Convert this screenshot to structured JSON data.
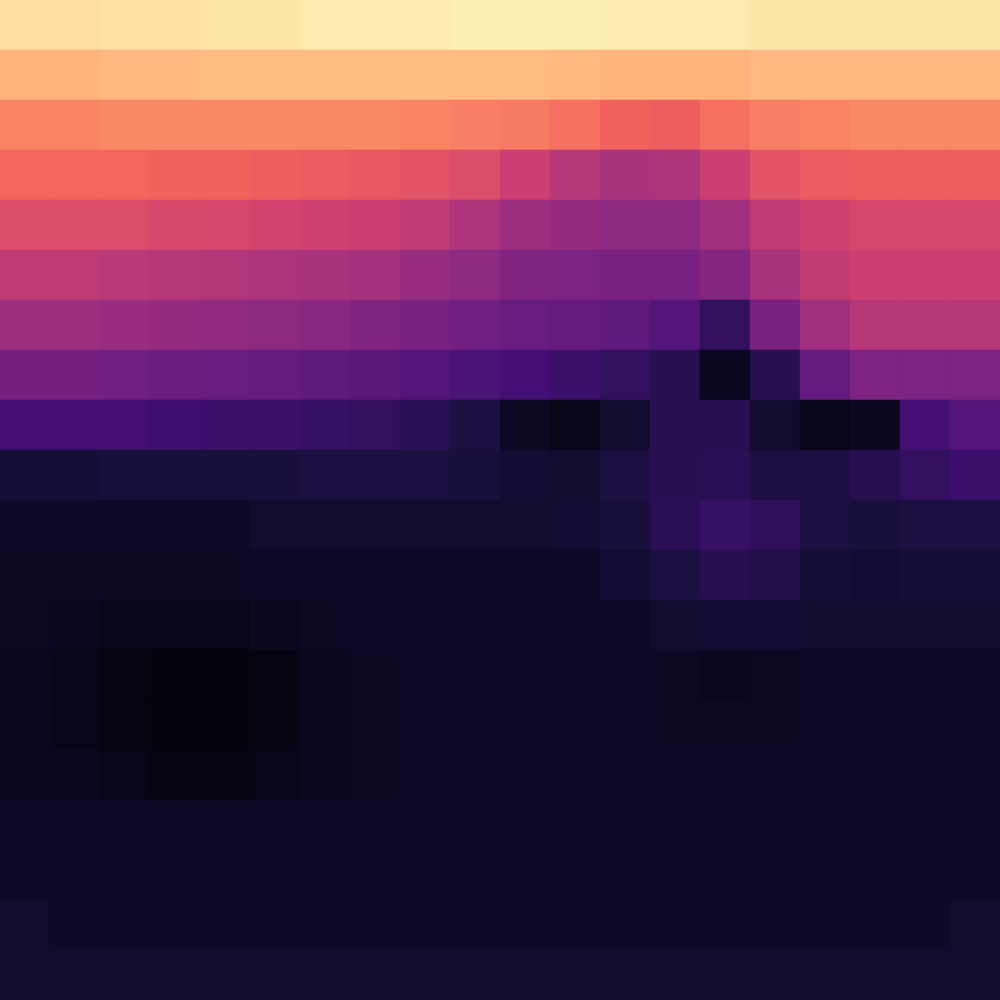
{
  "chart_data": {
    "type": "heatmap",
    "tick_labels": false,
    "color_range": [
      0,
      1
    ],
    "cells": [
      [
        0.93,
        0.93,
        0.94,
        0.94,
        0.95,
        0.95,
        0.96,
        0.96,
        0.96,
        0.97,
        0.97,
        0.97,
        0.96,
        0.96,
        0.96,
        0.95,
        0.95,
        0.95,
        0.95,
        0.95
      ],
      [
        0.84,
        0.84,
        0.85,
        0.85,
        0.86,
        0.86,
        0.86,
        0.86,
        0.86,
        0.86,
        0.86,
        0.85,
        0.84,
        0.84,
        0.84,
        0.85,
        0.85,
        0.85,
        0.85,
        0.85
      ],
      [
        0.74,
        0.74,
        0.75,
        0.75,
        0.75,
        0.75,
        0.75,
        0.75,
        0.74,
        0.73,
        0.72,
        0.7,
        0.67,
        0.66,
        0.7,
        0.73,
        0.74,
        0.75,
        0.75,
        0.75
      ],
      [
        0.68,
        0.68,
        0.68,
        0.67,
        0.67,
        0.66,
        0.65,
        0.64,
        0.62,
        0.6,
        0.55,
        0.5,
        0.47,
        0.48,
        0.55,
        0.62,
        0.65,
        0.66,
        0.66,
        0.66
      ],
      [
        0.6,
        0.6,
        0.6,
        0.59,
        0.58,
        0.57,
        0.56,
        0.55,
        0.52,
        0.48,
        0.44,
        0.42,
        0.4,
        0.4,
        0.45,
        0.52,
        0.56,
        0.58,
        0.58,
        0.58
      ],
      [
        0.52,
        0.52,
        0.51,
        0.5,
        0.49,
        0.48,
        0.47,
        0.46,
        0.43,
        0.4,
        0.37,
        0.36,
        0.35,
        0.35,
        0.38,
        0.47,
        0.53,
        0.55,
        0.55,
        0.55
      ],
      [
        0.44,
        0.44,
        0.43,
        0.42,
        0.41,
        0.4,
        0.39,
        0.37,
        0.35,
        0.33,
        0.31,
        0.3,
        0.29,
        0.26,
        0.18,
        0.35,
        0.45,
        0.5,
        0.5,
        0.5
      ],
      [
        0.34,
        0.34,
        0.33,
        0.32,
        0.31,
        0.3,
        0.29,
        0.28,
        0.26,
        0.24,
        0.22,
        0.2,
        0.18,
        0.15,
        0.05,
        0.15,
        0.3,
        0.36,
        0.36,
        0.36
      ],
      [
        0.22,
        0.22,
        0.22,
        0.21,
        0.2,
        0.2,
        0.19,
        0.18,
        0.16,
        0.12,
        0.06,
        0.04,
        0.08,
        0.15,
        0.15,
        0.08,
        0.04,
        0.05,
        0.22,
        0.26
      ],
      [
        0.1,
        0.1,
        0.11,
        0.11,
        0.11,
        0.11,
        0.12,
        0.12,
        0.12,
        0.11,
        0.09,
        0.08,
        0.12,
        0.15,
        0.16,
        0.12,
        0.12,
        0.15,
        0.18,
        0.2
      ],
      [
        0.07,
        0.07,
        0.07,
        0.07,
        0.07,
        0.08,
        0.08,
        0.08,
        0.08,
        0.08,
        0.08,
        0.09,
        0.11,
        0.16,
        0.19,
        0.17,
        0.12,
        0.11,
        0.12,
        0.12
      ],
      [
        0.06,
        0.06,
        0.06,
        0.06,
        0.06,
        0.07,
        0.07,
        0.07,
        0.07,
        0.07,
        0.07,
        0.07,
        0.09,
        0.12,
        0.15,
        0.14,
        0.1,
        0.09,
        0.1,
        0.1
      ],
      [
        0.06,
        0.05,
        0.04,
        0.04,
        0.04,
        0.05,
        0.06,
        0.07,
        0.07,
        0.07,
        0.07,
        0.07,
        0.07,
        0.08,
        0.09,
        0.09,
        0.08,
        0.08,
        0.08,
        0.08
      ],
      [
        0.05,
        0.04,
        0.03,
        0.02,
        0.02,
        0.03,
        0.05,
        0.06,
        0.07,
        0.07,
        0.07,
        0.07,
        0.07,
        0.06,
        0.05,
        0.06,
        0.07,
        0.07,
        0.07,
        0.07
      ],
      [
        0.05,
        0.04,
        0.03,
        0.02,
        0.02,
        0.03,
        0.05,
        0.06,
        0.07,
        0.07,
        0.07,
        0.07,
        0.07,
        0.06,
        0.06,
        0.06,
        0.07,
        0.07,
        0.07,
        0.07
      ],
      [
        0.05,
        0.05,
        0.04,
        0.03,
        0.03,
        0.04,
        0.05,
        0.06,
        0.07,
        0.07,
        0.07,
        0.07,
        0.07,
        0.07,
        0.07,
        0.07,
        0.07,
        0.07,
        0.07,
        0.07
      ],
      [
        0.07,
        0.07,
        0.07,
        0.07,
        0.07,
        0.07,
        0.07,
        0.07,
        0.07,
        0.07,
        0.07,
        0.07,
        0.07,
        0.07,
        0.07,
        0.07,
        0.07,
        0.07,
        0.07,
        0.07
      ],
      [
        0.07,
        0.07,
        0.07,
        0.07,
        0.07,
        0.07,
        0.07,
        0.07,
        0.07,
        0.07,
        0.07,
        0.07,
        0.07,
        0.07,
        0.07,
        0.07,
        0.07,
        0.07,
        0.07,
        0.07
      ],
      [
        0.08,
        0.07,
        0.07,
        0.07,
        0.07,
        0.07,
        0.07,
        0.07,
        0.07,
        0.07,
        0.07,
        0.07,
        0.07,
        0.07,
        0.07,
        0.07,
        0.07,
        0.07,
        0.07,
        0.08
      ],
      [
        0.08,
        0.08,
        0.08,
        0.08,
        0.08,
        0.08,
        0.08,
        0.08,
        0.08,
        0.08,
        0.08,
        0.08,
        0.08,
        0.08,
        0.08,
        0.08,
        0.08,
        0.08,
        0.08,
        0.08
      ]
    ]
  }
}
